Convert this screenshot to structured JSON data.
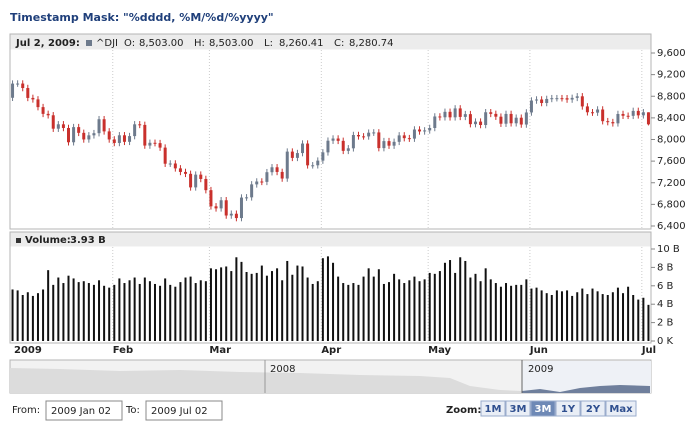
{
  "chart_data": {
    "type": "candlestick",
    "title": "Timestamp Mask: \"%dddd, %M/%d/%yyyy\"",
    "header": {
      "date": "Jul 2, 2009:",
      "fields": [
        {
          "label": "O:",
          "value": "8,503.00"
        },
        {
          "label": "H:",
          "value": "8,503.00"
        },
        {
          "label": "L:",
          "value": "8,260.41"
        },
        {
          "label": "C:",
          "value": "8,280.74"
        }
      ]
    },
    "categories": [
      "2009",
      null,
      null,
      null,
      null,
      null,
      null,
      null,
      null,
      null,
      null,
      null,
      null,
      null,
      null,
      null,
      null,
      null,
      null,
      null,
      "Feb",
      null,
      null,
      null,
      null,
      null,
      null,
      null,
      null,
      null,
      null,
      null,
      null,
      null,
      null,
      null,
      null,
      null,
      null,
      "Mar",
      null,
      null,
      null,
      null,
      null,
      null,
      null,
      null,
      null,
      null,
      null,
      null,
      null,
      null,
      null,
      null,
      null,
      null,
      null,
      null,
      null,
      "Apr",
      null,
      null,
      null,
      null,
      null,
      null,
      null,
      null,
      null,
      null,
      null,
      null,
      null,
      null,
      null,
      null,
      null,
      null,
      null,
      null,
      "May",
      null,
      null,
      null,
      null,
      null,
      null,
      null,
      null,
      null,
      null,
      null,
      null,
      null,
      null,
      null,
      null,
      null,
      null,
      null,
      "Jun",
      null,
      null,
      null,
      null,
      null,
      null,
      null,
      null,
      null,
      null,
      null,
      null,
      null,
      null,
      null,
      null,
      null,
      null,
      null,
      null,
      null,
      "Jul",
      null
    ],
    "series": [
      {
        "name": "^DJI",
        "up_color": "#6d7a8c",
        "down_color": "#c9302c",
        "open": [
          8772,
          9034,
          9035,
          8952,
          8769,
          8742,
          8599,
          8474,
          8448,
          8200,
          8281,
          8213,
          7949,
          8229,
          8123,
          8001,
          8077,
          8117,
          8375,
          8150,
          8001,
          7936,
          8078,
          7957,
          8063,
          8281,
          8270,
          7888,
          7939,
          7933,
          7850,
          7552,
          7556,
          7466,
          7400,
          7365,
          7114,
          7350,
          7270,
          7063,
          6764,
          6726,
          6876,
          6594,
          6627,
          6547,
          6926,
          6930,
          7170,
          7223,
          7216,
          7395,
          7486,
          7400,
          7278,
          7776,
          7660,
          7749,
          7925,
          7522,
          7523,
          7609,
          7762,
          7978,
          8018,
          7975,
          7790,
          7837,
          8083,
          8058,
          8057,
          8126,
          8131,
          7841,
          7970,
          7886,
          7957,
          8076,
          8025,
          8016,
          8185,
          8149,
          8168,
          8213,
          8426,
          8411,
          8512,
          8410,
          8575,
          8418,
          8469,
          8284,
          8331,
          8268,
          8504,
          8474,
          8422,
          8292,
          8473,
          8300,
          8403,
          8277,
          8500,
          8721,
          8740,
          8675,
          8750,
          8764,
          8764,
          8763,
          8739,
          8770,
          8799,
          8612,
          8504,
          8497,
          8555,
          8339,
          8322,
          8299,
          8472,
          8439,
          8438,
          8529,
          8447,
          8503
        ],
        "high": [
          9094,
          9095,
          9095,
          9012,
          8829,
          8802,
          8659,
          8534,
          8508,
          8341,
          8341,
          8273,
          8289,
          8289,
          8183,
          8137,
          8177,
          8435,
          8435,
          8210,
          8061,
          8138,
          8138,
          8123,
          8341,
          8341,
          8330,
          7999,
          7999,
          7993,
          7910,
          7616,
          7616,
          7526,
          7460,
          7425,
          7410,
          7410,
          7330,
          7123,
          6824,
          6936,
          6936,
          6687,
          6687,
          6986,
          6990,
          7230,
          7283,
          7283,
          7455,
          7546,
          7546,
          7460,
          7836,
          7836,
          7809,
          7985,
          7985,
          7583,
          7669,
          7822,
          8038,
          8078,
          8078,
          8035,
          7897,
          8143,
          8143,
          8118,
          8186,
          8191,
          8191,
          8030,
          8030,
          8017,
          8136,
          8136,
          8085,
          8245,
          8245,
          8228,
          8273,
          8486,
          8486,
          8572,
          8572,
          8635,
          8635,
          8529,
          8529,
          8391,
          8391,
          8564,
          8564,
          8534,
          8482,
          8533,
          8533,
          8463,
          8463,
          8560,
          8781,
          8800,
          8800,
          8810,
          8824,
          8824,
          8824,
          8823,
          8830,
          8859,
          8859,
          8672,
          8564,
          8615,
          8615,
          8399,
          8382,
          8532,
          8532,
          8499,
          8589,
          8589,
          8564,
          8503
        ],
        "low": [
          8712,
          8974,
          8892,
          8709,
          8682,
          8539,
          8414,
          8388,
          8140,
          8140,
          8153,
          7889,
          7889,
          8063,
          7941,
          7941,
          8017,
          8057,
          8090,
          7941,
          7876,
          7876,
          7897,
          7897,
          8003,
          8210,
          7828,
          7828,
          7873,
          7790,
          7492,
          7492,
          7406,
          7340,
          7305,
          7054,
          7054,
          7210,
          7003,
          6704,
          6666,
          6666,
          6534,
          6534,
          6487,
          6487,
          6866,
          6870,
          7110,
          7156,
          7156,
          7335,
          7340,
          7218,
          7218,
          7600,
          7600,
          7689,
          7462,
          7462,
          7463,
          7549,
          7702,
          7918,
          7915,
          7730,
          7730,
          7777,
          7998,
          7997,
          7997,
          8066,
          7781,
          7781,
          7826,
          7826,
          7897,
          7965,
          7956,
          7956,
          8089,
          8089,
          8108,
          8153,
          8351,
          8351,
          8350,
          8350,
          8358,
          8358,
          8224,
          8224,
          8208,
          8208,
          8414,
          8362,
          8232,
          8232,
          8240,
          8240,
          8217,
          8217,
          8440,
          8661,
          8615,
          8615,
          8690,
          8704,
          8703,
          8679,
          8679,
          8710,
          8552,
          8444,
          8437,
          8437,
          8279,
          8262,
          8239,
          8239,
          8379,
          8378,
          8378,
          8387,
          8387,
          8260.41
        ],
        "close": [
          9034,
          9035,
          8952,
          8769,
          8742,
          8599,
          8474,
          8448,
          8200,
          8281,
          8213,
          7949,
          8229,
          8123,
          8001,
          8077,
          8117,
          8375,
          8150,
          8001,
          7936,
          8078,
          7957,
          8063,
          8281,
          8270,
          7888,
          7939,
          7933,
          7850,
          7552,
          7556,
          7466,
          7400,
          7365,
          7114,
          7350,
          7270,
          7063,
          6764,
          6726,
          6876,
          6594,
          6627,
          6547,
          6926,
          6930,
          7170,
          7223,
          7216,
          7395,
          7486,
          7400,
          7278,
          7776,
          7660,
          7749,
          7925,
          7522,
          7523,
          7609,
          7762,
          7978,
          8018,
          7975,
          7790,
          7837,
          8083,
          8058,
          8057,
          8126,
          8131,
          7841,
          7970,
          7886,
          7957,
          8076,
          8025,
          8016,
          8185,
          8149,
          8168,
          8213,
          8426,
          8411,
          8512,
          8410,
          8575,
          8418,
          8469,
          8284,
          8331,
          8268,
          8504,
          8474,
          8422,
          8292,
          8473,
          8300,
          8403,
          8277,
          8500,
          8721,
          8740,
          8675,
          8750,
          8764,
          8764,
          8763,
          8739,
          8770,
          8799,
          8612,
          8504,
          8497,
          8555,
          8339,
          8322,
          8299,
          8472,
          8439,
          8438,
          8529,
          8447,
          8504,
          8280.74
        ]
      }
    ],
    "ylim": [
      6400,
      9600
    ],
    "yticks": [
      {
        "value": 6400,
        "label": "6,400"
      },
      {
        "value": 6800,
        "label": "6,800"
      },
      {
        "value": 7200,
        "label": "7,200"
      },
      {
        "value": 7600,
        "label": "7,600"
      },
      {
        "value": 8000,
        "label": "8,000"
      },
      {
        "value": 8400,
        "label": "8,400"
      },
      {
        "value": 8800,
        "label": "8,800"
      },
      {
        "value": 9200,
        "label": "9,200"
      },
      {
        "value": 9600,
        "label": "9,600"
      }
    ],
    "volume": {
      "name": "Volume:",
      "value_label": "3.93 B",
      "color": "#111111",
      "values": [
        5.6,
        5.5,
        5.0,
        5.3,
        4.9,
        5.2,
        5.6,
        7.7,
        6.1,
        6.9,
        6.3,
        7.1,
        6.8,
        6.4,
        6.5,
        6.3,
        6.1,
        6.6,
        6.0,
        5.8,
        6.1,
        6.8,
        6.3,
        6.6,
        6.9,
        6.2,
        6.9,
        6.5,
        6.2,
        6.0,
        6.8,
        6.1,
        5.9,
        6.4,
        6.9,
        7.0,
        6.3,
        6.6,
        6.5,
        7.9,
        7.8,
        8.0,
        8.1,
        7.6,
        9.1,
        8.6,
        7.5,
        7.3,
        7.4,
        8.2,
        7.1,
        7.6,
        7.9,
        6.6,
        8.7,
        7.2,
        8.2,
        8.1,
        6.9,
        6.2,
        6.5,
        9.0,
        9.2,
        8.5,
        7.0,
        6.3,
        6.1,
        6.3,
        6.1,
        7.0,
        7.9,
        7.0,
        7.8,
        6.2,
        6.4,
        7.3,
        6.7,
        6.3,
        6.6,
        7.0,
        6.5,
        6.7,
        7.4,
        7.3,
        7.6,
        8.5,
        8.8,
        7.4,
        9.1,
        8.7,
        6.9,
        7.3,
        6.5,
        7.9,
        6.7,
        6.3,
        5.9,
        6.3,
        6.0,
        6.1,
        6.1,
        6.7,
        5.7,
        5.8,
        5.5,
        5.2,
        5.0,
        5.5,
        5.4,
        5.5,
        4.9,
        5.3,
        5.7,
        5.1,
        5.7,
        5.4,
        5.1,
        5.0,
        5.3,
        5.8,
        5.2,
        5.9,
        5.0,
        4.5,
        4.7,
        3.93
      ],
      "ylim": [
        0,
        10
      ],
      "yticks": [
        {
          "value": 0,
          "label": "0 K"
        },
        {
          "value": 2,
          "label": "2 B"
        },
        {
          "value": 4,
          "label": "4 B"
        },
        {
          "value": 6,
          "label": "6 B"
        },
        {
          "value": 8,
          "label": "8 B"
        },
        {
          "value": 10,
          "label": "10 B"
        }
      ]
    },
    "navigator": {
      "labels": [
        "2008",
        "2009"
      ]
    },
    "controls": {
      "from_label": "From:",
      "from_value": "2009 Jan 02",
      "to_label": "To:",
      "to_value": "2009 Jul 02",
      "zoom_label": "Zoom:",
      "zoom_buttons": [
        "1M",
        "3M",
        "3M",
        "1Y",
        "2Y",
        "Max"
      ],
      "selected": 2
    }
  }
}
